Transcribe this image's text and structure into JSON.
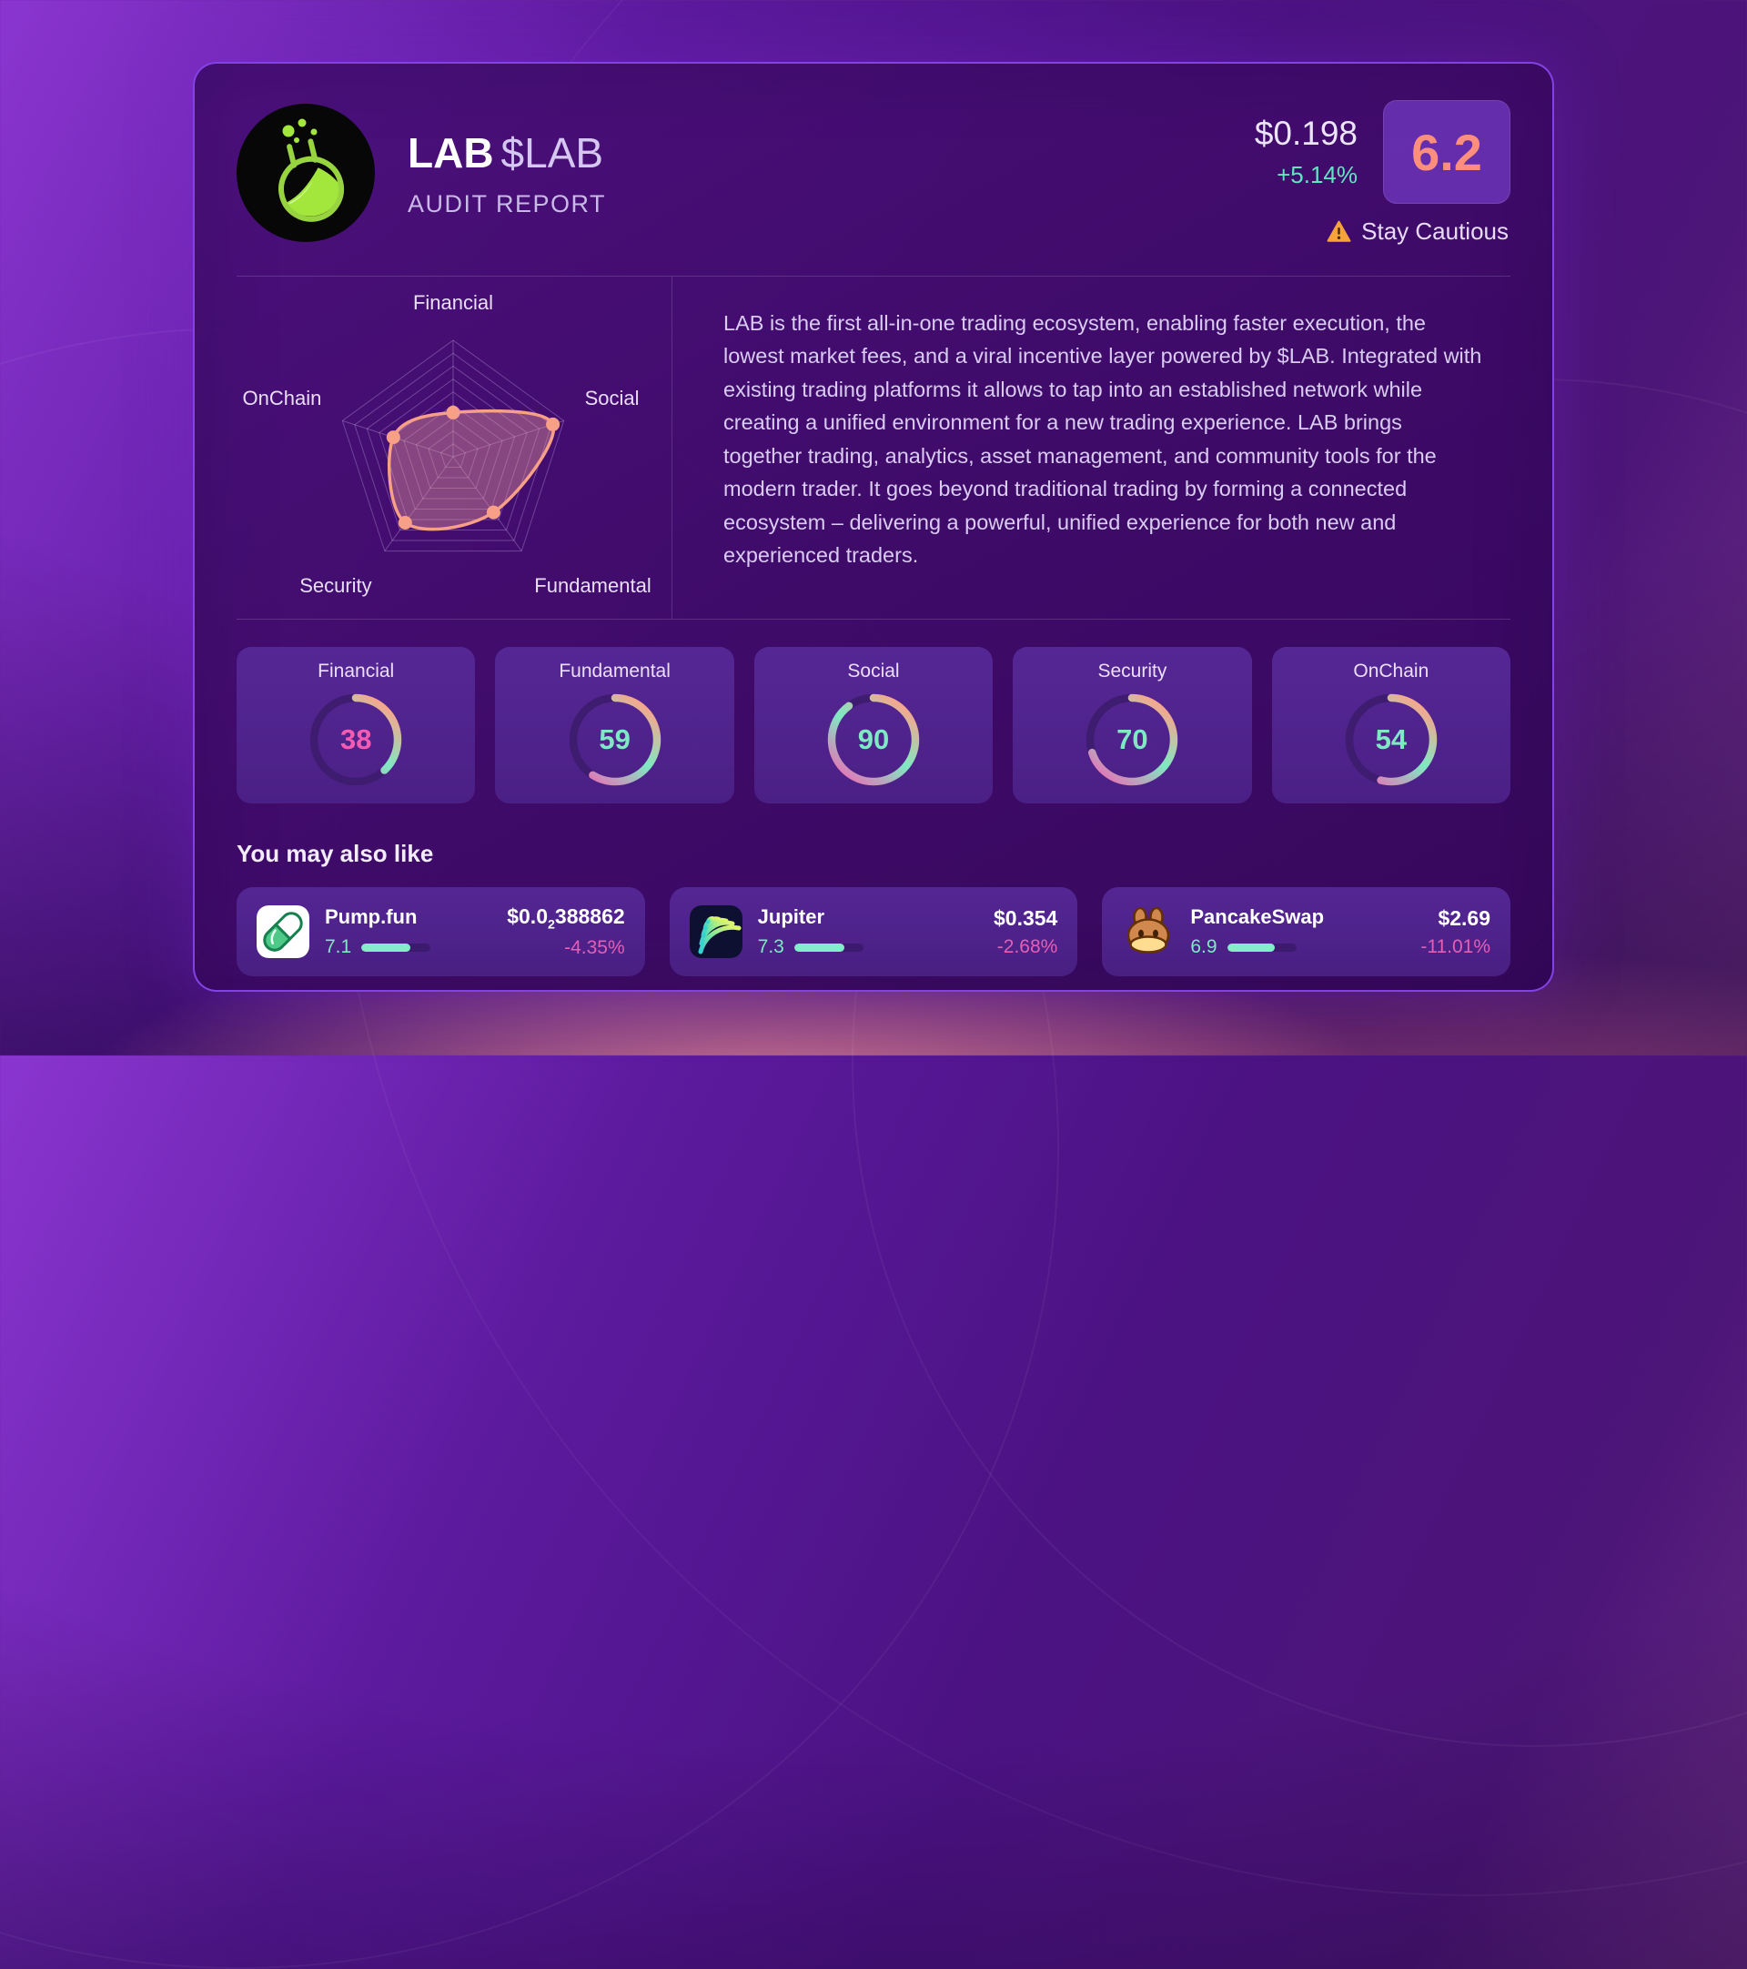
{
  "header": {
    "token_name": "LAB",
    "token_ticker": "$LAB",
    "subtitle": "AUDIT REPORT",
    "price": "$0.198",
    "change": "+5.14%",
    "score": "6.2",
    "risk_label": "Stay Cautious",
    "logo_icon": "flask-icon"
  },
  "description": "LAB is the first all-in-one trading ecosystem, enabling faster execution, the lowest market fees, and a viral incentive layer powered by $LAB. Integrated with existing trading platforms it allows to tap into an established network while creating a unified environment for a new trading experience. LAB brings together trading, analytics, asset management, and community tools for the modern trader. It goes beyond traditional trading by forming a connected ecosystem – delivering a powerful, unified experience for both new and experienced traders.",
  "chart_data": [
    {
      "type": "radar",
      "title": "Token audit radar",
      "categories": [
        "Financial",
        "Social",
        "Fundamental",
        "Security",
        "OnChain"
      ],
      "values": [
        38,
        90,
        59,
        70,
        54
      ],
      "scale": [
        0,
        100
      ],
      "rings": 9,
      "grid": true,
      "line_color": "#f8a087",
      "fill_color": "rgba(244,164,156,0.38)",
      "point_color": "#f8a087",
      "grid_color": "rgba(228,216,255,0.28)",
      "label_color": "#e8def8"
    },
    {
      "type": "gauge",
      "title": "Category scores",
      "categories": [
        "Financial",
        "Fundamental",
        "Social",
        "Security",
        "OnChain"
      ],
      "values": [
        38,
        59,
        90,
        70,
        54
      ],
      "range": [
        0,
        100
      ],
      "value_colors": [
        "#f45cb4",
        "#7fe9c3",
        "#7fe9c3",
        "#7fe9c3",
        "#7fe9c3"
      ],
      "arc_gradient": [
        "#f8a58d",
        "#7fe9c3",
        "#fb5bb5"
      ],
      "track_color": "#3e1c70"
    }
  ],
  "suggestions": {
    "heading": "You may also like",
    "items": [
      {
        "name": "Pump.fun",
        "icon": "pumpfun-icon",
        "rating": "7.1",
        "rating_pct": 71,
        "price_prefix": "$0.0",
        "price_sub": "2",
        "price_suffix": "388862",
        "change": "-4.35%"
      },
      {
        "name": "Jupiter",
        "icon": "jupiter-icon",
        "rating": "7.3",
        "rating_pct": 73,
        "price_prefix": "$0.354",
        "price_sub": "",
        "price_suffix": "",
        "change": "-2.68%"
      },
      {
        "name": "PancakeSwap",
        "icon": "pancakeswap-icon",
        "rating": "6.9",
        "rating_pct": 69,
        "price_prefix": "$2.69",
        "price_sub": "",
        "price_suffix": "",
        "change": "-11.01%"
      }
    ]
  },
  "colors": {
    "accent_teal": "#7fe9c3",
    "accent_pink": "#e45fb6",
    "score_color": "#fb8e7c",
    "warning_color": "#f6a33c",
    "bar_fill": "#82eccb",
    "bar_track": "#3c1a6e"
  }
}
